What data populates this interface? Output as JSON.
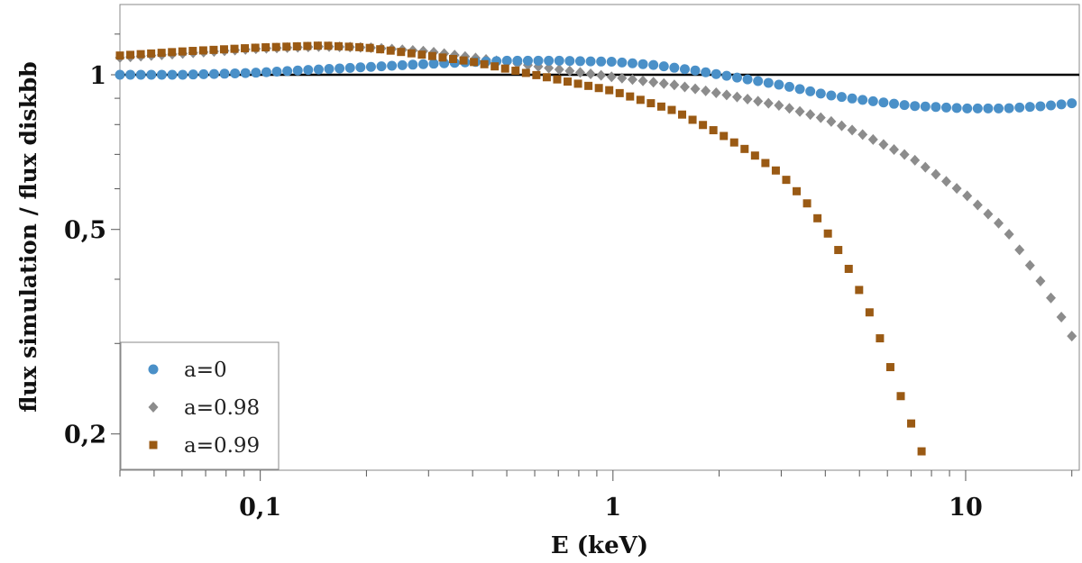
{
  "chart_data": {
    "type": "scatter",
    "xlabel": "E (keV)",
    "ylabel": "flux simulation / flux diskbb",
    "xscale": "log",
    "yscale": "log",
    "xlim": [
      0.04,
      21
    ],
    "ylim": [
      0.17,
      1.37
    ],
    "xticks": [
      {
        "value": 0.1,
        "label": "0,1"
      },
      {
        "value": 1,
        "label": "1"
      },
      {
        "value": 10,
        "label": "10"
      }
    ],
    "yticks": [
      {
        "value": 0.2,
        "label": "0,2"
      },
      {
        "value": 0.5,
        "label": "0,5"
      },
      {
        "value": 1,
        "label": "1"
      }
    ],
    "reference_line": {
      "y": 1,
      "color": "#000000"
    },
    "legend_position": "bottom-left",
    "series": [
      {
        "name": "a=0",
        "marker": "circle",
        "color": "#4a90c8",
        "points": [
          [
            0.04,
            1.0
          ],
          [
            0.06,
            1.0
          ],
          [
            0.08,
            1.005
          ],
          [
            0.1,
            1.01
          ],
          [
            0.13,
            1.02
          ],
          [
            0.2,
            1.035
          ],
          [
            0.3,
            1.05
          ],
          [
            0.5,
            1.065
          ],
          [
            0.7,
            1.065
          ],
          [
            1.0,
            1.06
          ],
          [
            1.3,
            1.045
          ],
          [
            1.7,
            1.02
          ],
          [
            2.2,
            0.99
          ],
          [
            3.0,
            0.955
          ],
          [
            4.0,
            0.915
          ],
          [
            5.0,
            0.895
          ],
          [
            7.0,
            0.87
          ],
          [
            10.0,
            0.86
          ],
          [
            13.0,
            0.86
          ],
          [
            17.0,
            0.87
          ],
          [
            20.0,
            0.88
          ]
        ]
      },
      {
        "name": "a=0.98",
        "marker": "diamond",
        "color": "#8c8c8c",
        "points": [
          [
            0.04,
            1.08
          ],
          [
            0.06,
            1.1
          ],
          [
            0.1,
            1.125
          ],
          [
            0.15,
            1.135
          ],
          [
            0.2,
            1.13
          ],
          [
            0.3,
            1.11
          ],
          [
            0.4,
            1.08
          ],
          [
            0.6,
            1.04
          ],
          [
            1.0,
            0.99
          ],
          [
            1.5,
            0.955
          ],
          [
            2.0,
            0.92
          ],
          [
            3.0,
            0.87
          ],
          [
            4.0,
            0.82
          ],
          [
            5.0,
            0.77
          ],
          [
            7.0,
            0.69
          ],
          [
            10.0,
            0.585
          ],
          [
            13.0,
            0.5
          ],
          [
            17.0,
            0.38
          ],
          [
            20.0,
            0.31
          ]
        ]
      },
      {
        "name": "a=0.99",
        "marker": "square",
        "color": "#9a5a14",
        "points": [
          [
            0.04,
            1.09
          ],
          [
            0.06,
            1.11
          ],
          [
            0.1,
            1.13
          ],
          [
            0.15,
            1.14
          ],
          [
            0.2,
            1.13
          ],
          [
            0.3,
            1.09
          ],
          [
            0.4,
            1.06
          ],
          [
            0.6,
            1.0
          ],
          [
            1.0,
            0.93
          ],
          [
            1.5,
            0.85
          ],
          [
            2.0,
            0.77
          ],
          [
            2.5,
            0.7
          ],
          [
            3.0,
            0.64
          ],
          [
            3.5,
            0.57
          ],
          [
            4.0,
            0.5
          ],
          [
            4.5,
            0.44
          ],
          [
            5.0,
            0.38
          ],
          [
            5.5,
            0.33
          ],
          [
            6.0,
            0.28
          ],
          [
            6.5,
            0.24
          ],
          [
            7.0,
            0.21
          ],
          [
            7.5,
            0.185
          ]
        ]
      }
    ]
  }
}
